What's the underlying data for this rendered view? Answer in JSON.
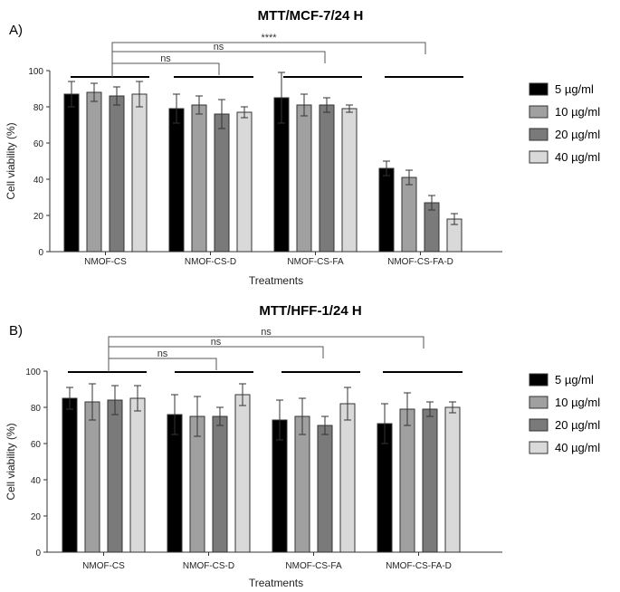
{
  "chart_data": [
    {
      "type": "bar",
      "panel": "A)",
      "title": "MTT/MCF-7/24 H",
      "xlabel": "Treatments",
      "ylabel": "Cell viability (%)",
      "ylim": [
        0,
        100
      ],
      "yticks": [
        0,
        20,
        40,
        60,
        80,
        100
      ],
      "categories": [
        "NMOF-CS",
        "NMOF-CS-D",
        "NMOF-CS-FA",
        "NMOF-CS-FA-D"
      ],
      "series": [
        {
          "name": "5 µg/ml",
          "color": "#000000",
          "values": [
            87,
            79,
            85,
            46
          ],
          "errors": [
            7,
            8,
            14,
            4
          ]
        },
        {
          "name": "10 µg/ml",
          "color": "#a0a0a0",
          "values": [
            88,
            81,
            81,
            41
          ],
          "errors": [
            5,
            5,
            6,
            4
          ]
        },
        {
          "name": "20 µg/ml",
          "color": "#7a7a7a",
          "values": [
            86,
            76,
            81,
            27
          ],
          "errors": [
            5,
            8,
            4,
            4
          ]
        },
        {
          "name": "40 µg/ml",
          "color": "#d9d9d9",
          "values": [
            87,
            77,
            79,
            18
          ],
          "errors": [
            7,
            3,
            2,
            3
          ]
        }
      ],
      "comparisons": [
        {
          "from": "NMOF-CS",
          "to": "NMOF-CS-D",
          "label": "ns"
        },
        {
          "from": "NMOF-CS",
          "to": "NMOF-CS-FA",
          "label": "ns"
        },
        {
          "from": "NMOF-CS",
          "to": "NMOF-CS-FA-D",
          "label": "****"
        }
      ]
    },
    {
      "type": "bar",
      "panel": "B)",
      "title": "MTT/HFF-1/24 H",
      "xlabel": "Treatments",
      "ylabel": "Cell viability (%)",
      "ylim": [
        0,
        100
      ],
      "yticks": [
        0,
        20,
        40,
        60,
        80,
        100
      ],
      "categories": [
        "NMOF-CS",
        "NMOF-CS-D",
        "NMOF-CS-FA",
        "NMOF-CS-FA-D"
      ],
      "series": [
        {
          "name": "5 µg/ml",
          "color": "#000000",
          "values": [
            85,
            76,
            73,
            71
          ],
          "errors": [
            6,
            11,
            11,
            11
          ]
        },
        {
          "name": "10 µg/ml",
          "color": "#a0a0a0",
          "values": [
            83,
            75,
            75,
            79
          ],
          "errors": [
            10,
            11,
            10,
            9
          ]
        },
        {
          "name": "20 µg/ml",
          "color": "#7a7a7a",
          "values": [
            84,
            75,
            70,
            79
          ],
          "errors": [
            8,
            5,
            5,
            4
          ]
        },
        {
          "name": "40 µg/ml",
          "color": "#d9d9d9",
          "values": [
            85,
            87,
            82,
            80
          ],
          "errors": [
            7,
            6,
            9,
            3
          ]
        }
      ],
      "comparisons": [
        {
          "from": "NMOF-CS",
          "to": "NMOF-CS-D",
          "label": "ns"
        },
        {
          "from": "NMOF-CS",
          "to": "NMOF-CS-FA",
          "label": "ns"
        },
        {
          "from": "NMOF-CS",
          "to": "NMOF-CS-FA-D",
          "label": "ns"
        }
      ]
    }
  ]
}
